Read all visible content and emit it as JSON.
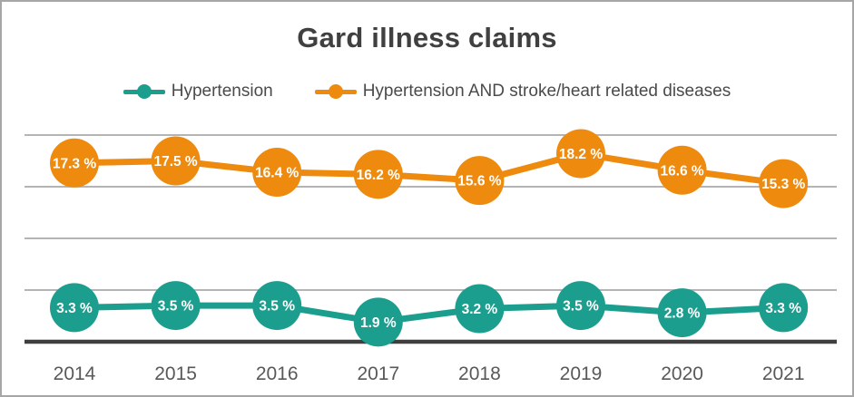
{
  "chart_data": {
    "type": "line",
    "title": "Gard illness claims",
    "categories": [
      "2014",
      "2015",
      "2016",
      "2017",
      "2018",
      "2019",
      "2020",
      "2021"
    ],
    "series": [
      {
        "name": "Hypertension",
        "color": "#1b9e8e",
        "values": [
          3.3,
          3.5,
          3.5,
          1.9,
          3.2,
          3.5,
          2.8,
          3.3
        ]
      },
      {
        "name": "Hypertension AND stroke/heart related diseases",
        "color": "#ee8a0e",
        "values": [
          17.3,
          17.5,
          16.4,
          16.2,
          15.6,
          18.2,
          16.6,
          15.3
        ]
      }
    ],
    "xlabel": "",
    "ylabel": "",
    "ylim": [
      0,
      20
    ],
    "gridline_values": [
      5,
      10,
      15,
      20
    ],
    "grid": "horizontal",
    "legend_position": "top",
    "y_axis_labels_visible": false,
    "data_label_suffix": " %",
    "data_label_decimals": 1
  },
  "styles": {
    "background": "#ffffff",
    "border_color": "#a6a6a6",
    "title_color": "#404040",
    "legend_text_color": "#4a4a4a",
    "gridline_color": "#a9a9a9",
    "axis_line_color": "#3f3f3f",
    "tick_label_color": "#595959",
    "data_label_color": "#ffffff"
  }
}
